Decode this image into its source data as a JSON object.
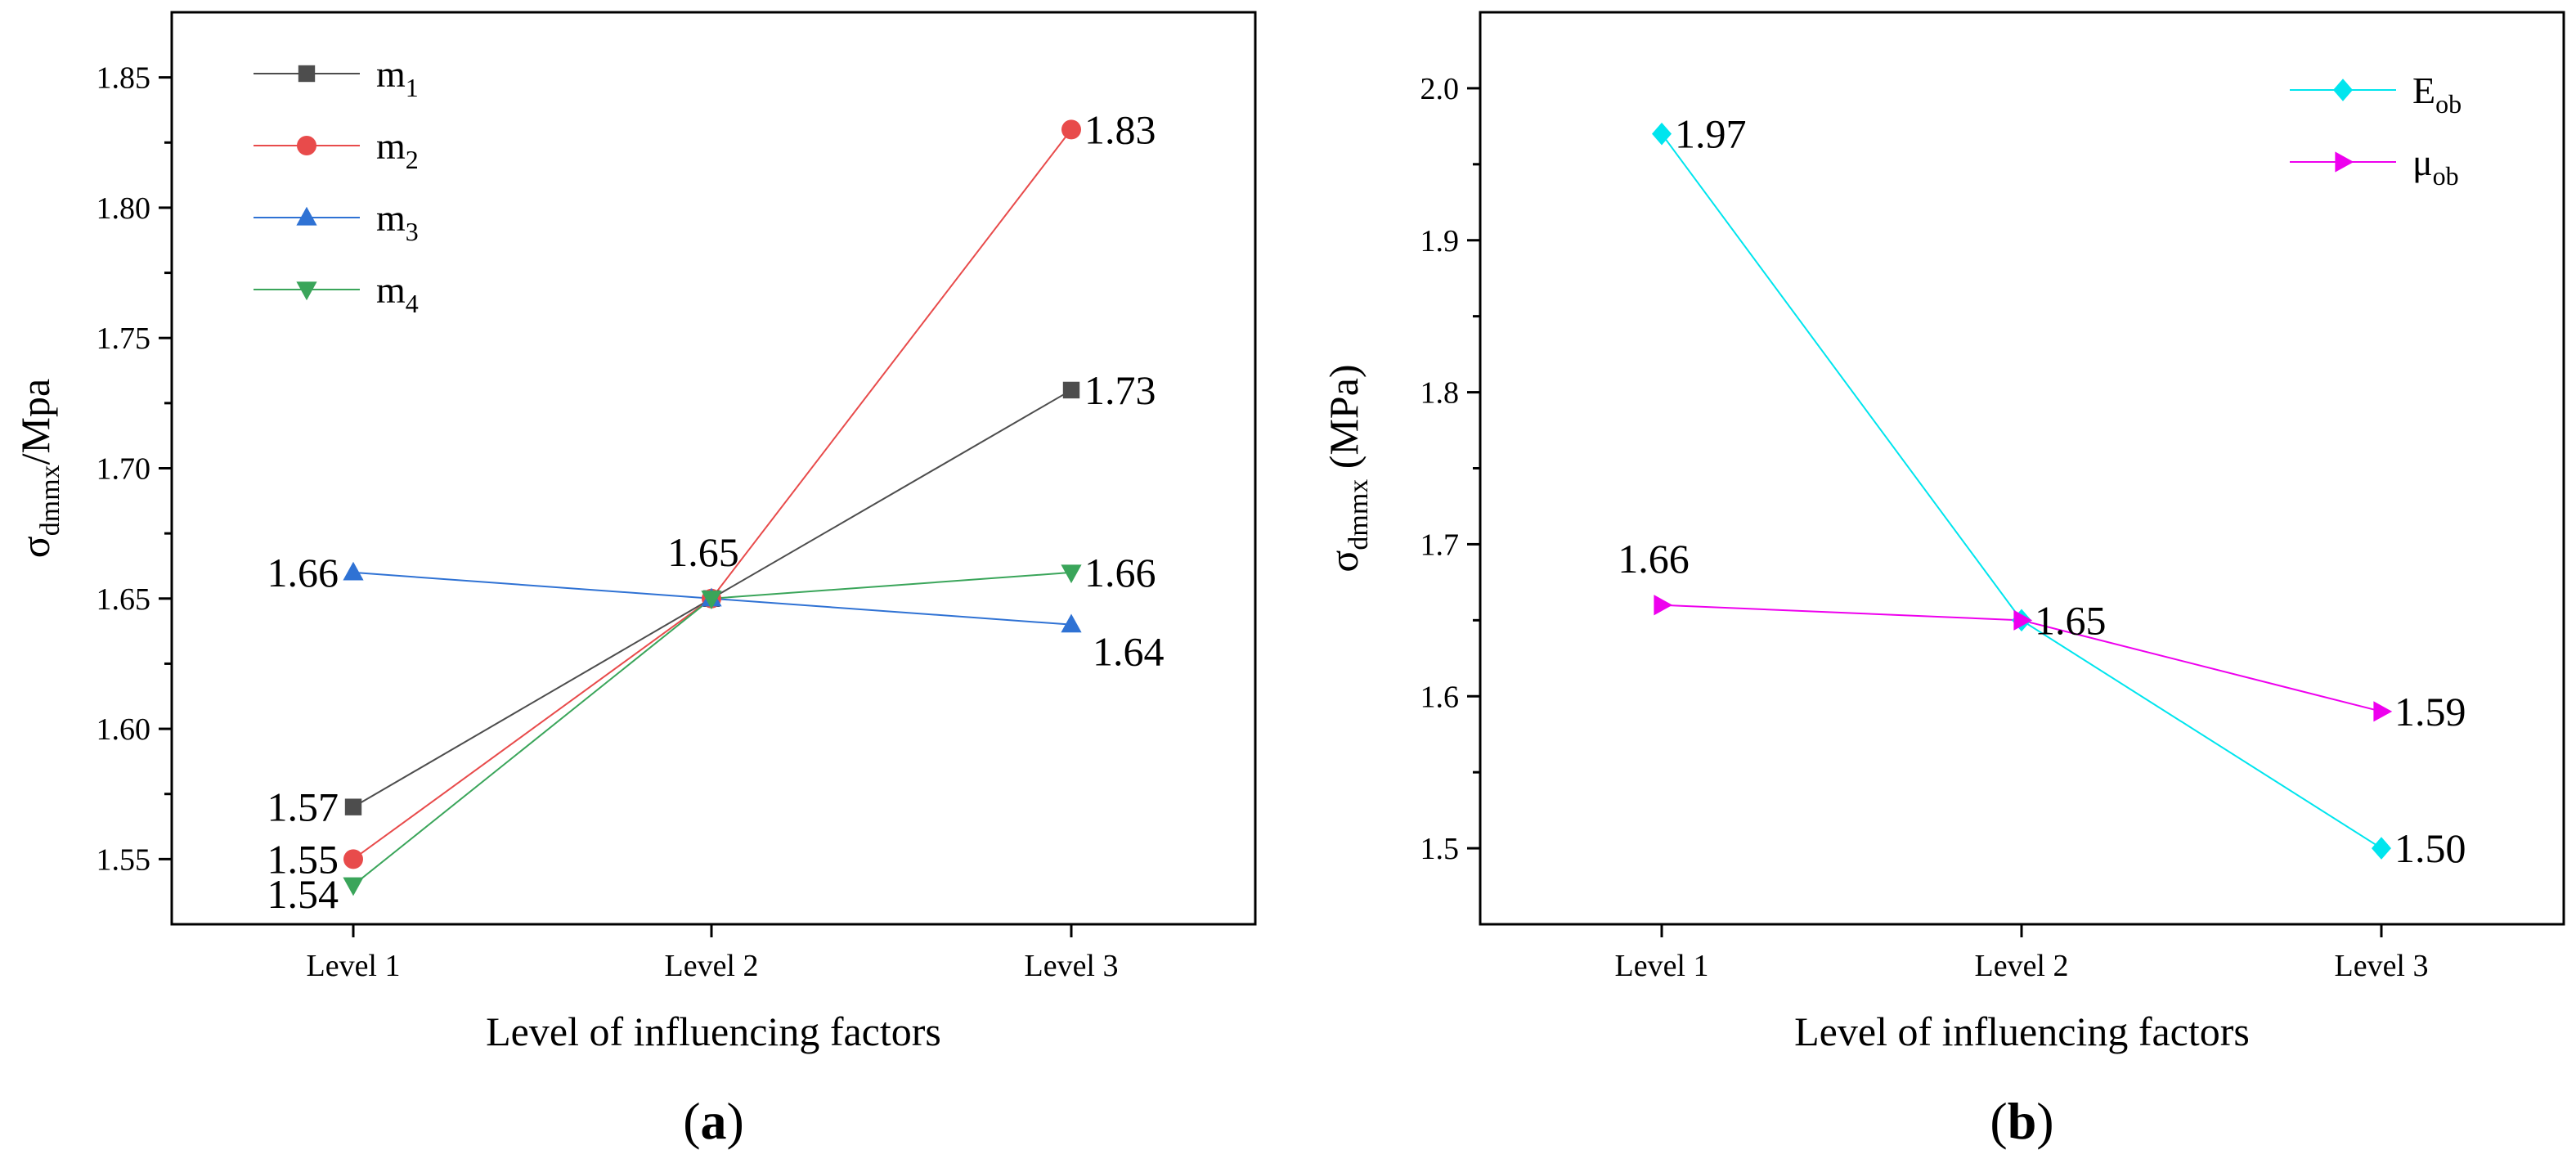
{
  "chart_data": [
    {
      "panel": "(a)",
      "panel_letter": "a",
      "type": "line",
      "categories": [
        "Level 1",
        "Level 2",
        "Level 3"
      ],
      "xlabel": "Level of influencing factors",
      "ylabel": {
        "main": "σ",
        "sub": "dmmx",
        "rest": "/Mpa"
      },
      "ylim": [
        1.525,
        1.875
      ],
      "yticks": [
        1.55,
        1.6,
        1.65,
        1.7,
        1.75,
        1.8,
        1.85
      ],
      "ytick_labels": [
        "1.55",
        "1.60",
        "1.65",
        "1.70",
        "1.75",
        "1.80",
        "1.85"
      ],
      "grid": false,
      "legend_position": "top-left",
      "series": [
        {
          "name": "m",
          "name_sub": "1",
          "color": "#4d4d4d",
          "marker": "square",
          "values": [
            1.57,
            1.65,
            1.73
          ]
        },
        {
          "name": "m",
          "name_sub": "2",
          "color": "#e84b4b",
          "marker": "circle",
          "values": [
            1.55,
            1.65,
            1.83
          ]
        },
        {
          "name": "m",
          "name_sub": "3",
          "color": "#2f72d4",
          "marker": "triangle-up",
          "values": [
            1.66,
            1.65,
            1.64
          ]
        },
        {
          "name": "m",
          "name_sub": "4",
          "color": "#3aa55a",
          "marker": "triangle-down",
          "values": [
            1.54,
            1.65,
            1.66
          ]
        }
      ],
      "annotations": [
        {
          "text": "1.57",
          "category": "Level 1",
          "value": 1.57,
          "anchor": "left"
        },
        {
          "text": "1.55",
          "category": "Level 1",
          "value": 1.55,
          "anchor": "left"
        },
        {
          "text": "1.54",
          "category": "Level 1",
          "value": 1.54,
          "anchor": "left-below"
        },
        {
          "text": "1.66",
          "category": "Level 1",
          "value": 1.66,
          "anchor": "left"
        },
        {
          "text": "1.65",
          "category": "Level 2",
          "value": 1.65,
          "anchor": "above"
        },
        {
          "text": "1.83",
          "category": "Level 3",
          "value": 1.83,
          "anchor": "right"
        },
        {
          "text": "1.73",
          "category": "Level 3",
          "value": 1.73,
          "anchor": "right"
        },
        {
          "text": "1.66",
          "category": "Level 3",
          "value": 1.66,
          "anchor": "right"
        },
        {
          "text": "1.64",
          "category": "Level 3",
          "value": 1.64,
          "anchor": "right-below"
        }
      ]
    },
    {
      "panel": "(b)",
      "panel_letter": "b",
      "type": "line",
      "categories": [
        "Level 1",
        "Level 2",
        "Level 3"
      ],
      "xlabel": "Level of influencing factors",
      "ylabel": {
        "main": "σ",
        "sub": "dmmx",
        "rest": " (MPa)"
      },
      "ylim": [
        1.45,
        2.05
      ],
      "yticks": [
        1.5,
        1.6,
        1.7,
        1.8,
        1.9,
        2.0
      ],
      "ytick_labels": [
        "1.5",
        "1.6",
        "1.7",
        "1.8",
        "1.9",
        "2.0"
      ],
      "grid": false,
      "legend_position": "top-right",
      "series": [
        {
          "name": "E",
          "name_sub": "ob",
          "color": "#00e5ee",
          "marker": "diamond",
          "values": [
            1.97,
            1.65,
            1.5
          ]
        },
        {
          "name": "μ",
          "name_sub": "ob",
          "color": "#ee00ee",
          "marker": "triangle-right",
          "values": [
            1.66,
            1.65,
            1.59
          ]
        }
      ],
      "annotations": [
        {
          "text": "1.97",
          "category": "Level 1",
          "value": 1.97,
          "anchor": "right"
        },
        {
          "text": "1.66",
          "category": "Level 1",
          "value": 1.66,
          "anchor": "above"
        },
        {
          "text": "1.65",
          "category": "Level 2",
          "value": 1.65,
          "anchor": "right"
        },
        {
          "text": "1.59",
          "category": "Level 3",
          "value": 1.59,
          "anchor": "right"
        },
        {
          "text": "1.50",
          "category": "Level 3",
          "value": 1.5,
          "anchor": "right"
        }
      ]
    }
  ]
}
